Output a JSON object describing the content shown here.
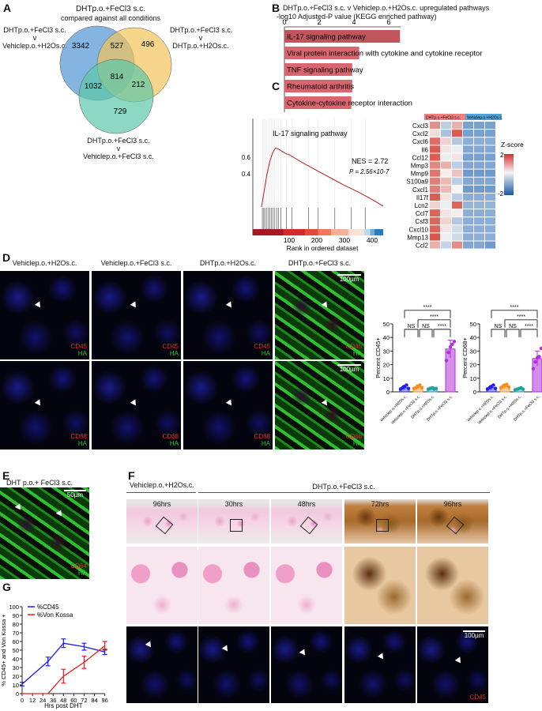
{
  "panels": {
    "a": "A",
    "b": "B",
    "c": "C",
    "d": "D",
    "e": "E",
    "f": "F",
    "g": "G"
  },
  "venn": {
    "title_main": "DHTp.o.+FeCl3 s.c.",
    "title_sub": "compared against all conditions",
    "set_left": [
      "DHTp.o.+FeCl3 s.c.",
      "v",
      "Vehiclep.o.+H2Os.c."
    ],
    "set_right": [
      "DHTp.o.+FeCl3 s.c.",
      "v",
      "DHTp.o.+H2Os.c."
    ],
    "set_bottom": [
      "DHTp.o.+FeCl3 s.c.",
      "v",
      "Vehiclep.o.+FeCl3 s.c."
    ],
    "regions": {
      "left_only": "3342",
      "left_right": "527",
      "right_only": "496",
      "all": "814",
      "left_bottom": "1032",
      "right_bottom": "212",
      "bottom_only": "729"
    },
    "colors": {
      "left": "#5b9bd5",
      "right": "#f2c45a",
      "bottom": "#5cc7a8"
    }
  },
  "chart_data": [
    {
      "type": "bar",
      "orientation": "horizontal",
      "title": "DHTp.o.+FeCl3 s.c. v Vehiclep.o.+H2Os.c. upregulated pathways",
      "xlabel": "-log10 Adjusted-P value (KEGG enriched pathway)",
      "xticks": [
        "0",
        "2",
        "4",
        "6"
      ],
      "xlim": [
        0,
        6.7
      ],
      "categories": [
        "IL-17 signaling pathway",
        "Viral protein interaction with cytokine and cytokine receptor",
        "TNF signaling pathway",
        "Rheumatoid arthritis",
        "Cytokine-cytokine receptor interaction"
      ],
      "values": [
        6.65,
        4.3,
        3.9,
        3.9,
        3.85
      ],
      "colors": [
        "#c0555c",
        "#d9666e",
        "#d9666e",
        "#d9666e",
        "#d9666e"
      ]
    },
    {
      "type": "line",
      "title": "IL-17 signaling pathway",
      "annotation_nes": "NES = 2.72",
      "annotation_p": "P = 2.56×10-7",
      "xlabel": "Rank in ordered dataset",
      "xticks": [
        "100",
        "200",
        "300",
        "400"
      ],
      "yticks": [
        "0.4",
        "0.6"
      ],
      "xlim": [
        0,
        440
      ],
      "ylim": [
        0,
        0.8
      ],
      "x": [
        0,
        10,
        20,
        30,
        40,
        50,
        60,
        70,
        80,
        90,
        100,
        150,
        200,
        250,
        300,
        350,
        400,
        440
      ],
      "y": [
        0,
        0.2,
        0.4,
        0.55,
        0.65,
        0.71,
        0.7,
        0.68,
        0.66,
        0.64,
        0.63,
        0.53,
        0.44,
        0.35,
        0.26,
        0.18,
        0.09,
        0.01
      ],
      "hits": [
        3,
        8,
        12,
        18,
        25,
        30,
        36,
        42,
        48,
        55,
        62,
        70,
        90,
        110,
        170,
        205,
        265,
        325,
        375
      ],
      "line_color": "#b02020"
    },
    {
      "type": "heatmap",
      "group_labels": [
        "DHTp.o.+FeCl3 s.c.",
        "Vehiclep.o.+H2Os.c."
      ],
      "group_colors": [
        "#f08080",
        "#4fa3d8"
      ],
      "legend_title": "Z-score",
      "legend_max": "2",
      "legend_min": "-2",
      "rows": [
        "Cxcl3",
        "Cxcl2",
        "Cxcl6",
        "Il6",
        "Ccl12",
        "Mmp3",
        "Mmp9",
        "S100a9",
        "Cxcl1",
        "Il17f",
        "Lcn2",
        "Ccl7",
        "Csf3",
        "Cxcl10",
        "Mmp13",
        "Ccl2"
      ],
      "values": [
        [
          1.2,
          -0.6,
          0.8,
          -1.3,
          -1.3,
          -1.3
        ],
        [
          0.3,
          -0.8,
          1.8,
          -1.3,
          -1.3,
          -1.3
        ],
        [
          1.6,
          0.4,
          -0.7,
          -1.1,
          -1.1,
          -1.1
        ],
        [
          1.8,
          0.2,
          -0.1,
          -1.2,
          -1.2,
          -1.2
        ],
        [
          1.8,
          -0.1,
          0.2,
          -1.3,
          -1.3,
          -1.3
        ],
        [
          1.3,
          0.8,
          -0.6,
          -1.2,
          -1.2,
          -1.2
        ],
        [
          1.5,
          0.1,
          0.6,
          -1.4,
          -1.4,
          -1.4
        ],
        [
          1.4,
          0.7,
          -0.6,
          -1.2,
          -1.2,
          -1.2
        ],
        [
          1.4,
          0.7,
          0.0,
          -1.4,
          -1.4,
          -1.4
        ],
        [
          1.8,
          0.2,
          -0.6,
          -1.1,
          -1.1,
          -1.1
        ],
        [
          0.4,
          -0.1,
          1.7,
          -1.0,
          -1.0,
          -1.0
        ],
        [
          1.7,
          0.2,
          0.1,
          -1.1,
          -1.1,
          -1.1
        ],
        [
          1.7,
          0.4,
          -0.7,
          -1.1,
          -1.1,
          -1.1
        ],
        [
          1.7,
          0.2,
          -0.4,
          -1.1,
          -1.1,
          -1.1
        ],
        [
          1.9,
          -0.1,
          -0.4,
          -1.1,
          -1.1,
          -1.1
        ],
        [
          0.8,
          -0.5,
          1.2,
          -1.2,
          -1.2,
          -1.4
        ]
      ]
    },
    {
      "type": "bar",
      "ylabel": "Percent CD45+",
      "ylim": [
        0,
        50
      ],
      "yticks": [
        "0",
        "10",
        "20",
        "30",
        "40",
        "50"
      ],
      "categories": [
        "Vehiclep.o.+H2Os.c.",
        "Vehiclep.o.+FeCl3 s.c.",
        "DHTp.o.+H2Os.c.",
        "DHTp.o.+FeCl3 s.c."
      ],
      "values": [
        3,
        3.5,
        2.5,
        31.5
      ],
      "sd": [
        1.5,
        1.5,
        1,
        6.5
      ],
      "points": [
        [
          2,
          3,
          4,
          5,
          2.5
        ],
        [
          2.5,
          3,
          4,
          5,
          3
        ],
        [
          2,
          2.5,
          3,
          2,
          2.5
        ],
        [
          23,
          29,
          33,
          35,
          37
        ]
      ],
      "colors": [
        "#2020f0",
        "#ff8c1a",
        "#20a0a0",
        "#b030d8"
      ],
      "significance": [
        "NS",
        "NS",
        "****",
        "****",
        "****"
      ]
    },
    {
      "type": "bar",
      "ylabel": "Percent CD68+",
      "ylim": [
        0,
        50
      ],
      "yticks": [
        "0",
        "10",
        "20",
        "30",
        "40",
        "50"
      ],
      "categories": [
        "Vehiclep.o.+H2Os.c.",
        "Vehiclep.o.+FeCl3 s.c.",
        "DHTp.o.+H2Os.c.",
        "DHTp.o.+FeCl3 s.c."
      ],
      "values": [
        3,
        4,
        2,
        24.5
      ],
      "sd": [
        1.5,
        1.5,
        0.8,
        5.5
      ],
      "points": [
        [
          2,
          3,
          4,
          5,
          2.5
        ],
        [
          3,
          4,
          5,
          5.5,
          3.5
        ],
        [
          1.5,
          2,
          2.5,
          3,
          2
        ],
        [
          17,
          22,
          25,
          26,
          32
        ]
      ],
      "colors": [
        "#2020f0",
        "#ff8c1a",
        "#20a0a0",
        "#b030d8"
      ],
      "significance": [
        "NS",
        "NS",
        "****",
        "****",
        "****"
      ]
    },
    {
      "type": "line",
      "ylabel": "% CD45+ and Von Kossa +",
      "xlabel": "Hrs post DHT",
      "xlim": [
        0,
        96
      ],
      "ylim": [
        0,
        100
      ],
      "xticks": [
        "0",
        "12",
        "24",
        "36",
        "48",
        "60",
        "72",
        "84",
        "96"
      ],
      "yticks": [
        "0",
        "10",
        "20",
        "30",
        "40",
        "50",
        "60",
        "70",
        "80",
        "90",
        "100"
      ],
      "x": [
        0,
        30,
        48,
        72,
        96
      ],
      "series": [
        {
          "name": "%CD45",
          "values": [
            11,
            37,
            58,
            54,
            48
          ],
          "sd": [
            2,
            5,
            5,
            4,
            3
          ],
          "color": "#1a1aee"
        },
        {
          "name": "%Von Kossa",
          "values": [
            0,
            0,
            20,
            36,
            55
          ],
          "sd": [
            0,
            0,
            8,
            7,
            5
          ],
          "color": "#ee1a1a"
        }
      ],
      "legend": "top-left"
    }
  ],
  "d": {
    "columns": [
      "Vehiclep.o.+H2Os.c.",
      "Vehiclep.o.+FeCl3 s.c.",
      "DHTp.o.+H2Os.c.",
      "DHTp.o.+FeCl3 s.c."
    ],
    "row1_marker": "CD45",
    "row2_marker": "CD68",
    "counter": "HA",
    "scale": "100µm"
  },
  "e": {
    "title": "DHT p.o.+ FeCl3 s.c.",
    "marker": "CD64",
    "counter": "HA",
    "scale": "50µm"
  },
  "f": {
    "group_control": "Vehiclep.o.+H2Os.c.",
    "group_dht": "DHTp.o.+FeCl3 s.c.",
    "times": [
      "96hrs",
      "30hrs",
      "48hrs",
      "72hrs",
      "96hrs"
    ],
    "scale": "100µm",
    "marker": "CD45"
  }
}
